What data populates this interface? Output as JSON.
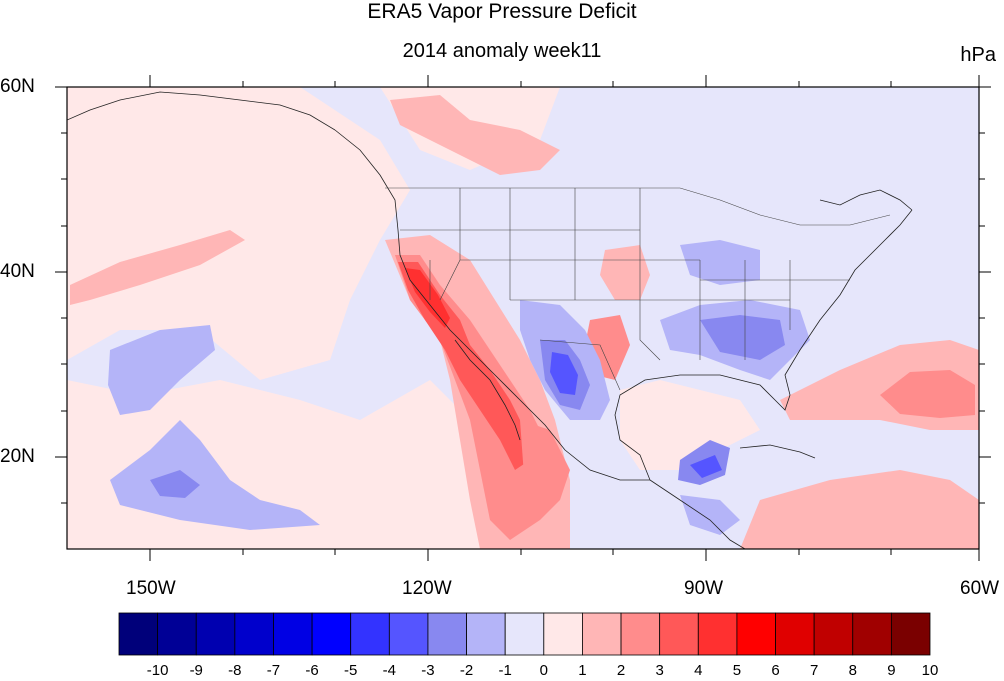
{
  "title": "ERA5 Vapor Pressure Deficit",
  "subtitle": "2014 anomaly week11",
  "units": "hPa",
  "map": {
    "lon_range": [
      -160,
      -60
    ],
    "lat_range": [
      10,
      60
    ],
    "x_ticks": [
      "150W",
      "120W",
      "90W",
      "60W"
    ],
    "y_ticks": [
      "60N",
      "40N",
      "20N"
    ]
  },
  "colorbar": {
    "labels": [
      "-10",
      "-9",
      "-8",
      "-7",
      "-6",
      "-5",
      "-4",
      "-3",
      "-2",
      "-1",
      "0",
      "1",
      "2",
      "3",
      "4",
      "5",
      "6",
      "7",
      "8",
      "9",
      "10"
    ],
    "colors": [
      "#00007a",
      "#000096",
      "#0000b0",
      "#0000cc",
      "#0000e4",
      "#0000ff",
      "#3333ff",
      "#5555ff",
      "#8888f0",
      "#b4b4f8",
      "#e6e6fb",
      "#ffe8e8",
      "#ffb6b6",
      "#ff8c8c",
      "#ff5858",
      "#ff3030",
      "#ff0000",
      "#e00000",
      "#c00000",
      "#a00000",
      "#7a0000"
    ]
  }
}
